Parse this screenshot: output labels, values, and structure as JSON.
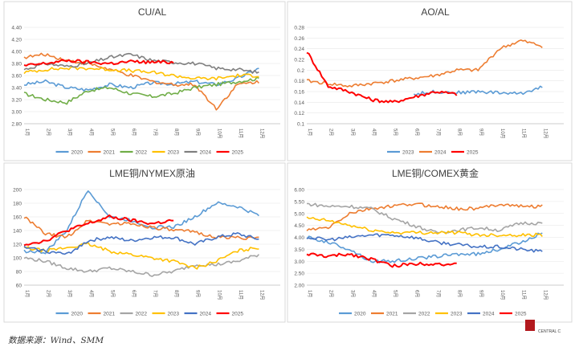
{
  "source_note": "数据来源：Wind、SMM",
  "logo": {
    "text": "CENTRAL C",
    "color": "#b3191e"
  },
  "months": [
    "1月",
    "2月",
    "3月",
    "4月",
    "5月",
    "6月",
    "7月",
    "8月",
    "9月",
    "10月",
    "11月",
    "12月"
  ],
  "colors": {
    "2020": "#5b9bd5",
    "2021": "#ed7d31",
    "2022": "#a5a5a5",
    "2022_cu": "#70ad47",
    "2023": "#ffc000",
    "2024": "#4472c4",
    "2024_cu": "#7f7f7f",
    "2025": "#ff0000"
  },
  "chart_data": [
    {
      "type": "line",
      "title": "CU/AL",
      "yticks": [
        "4.40",
        "4.20",
        "4.00",
        "3.80",
        "3.60",
        "3.40",
        "3.20",
        "3.00",
        "2.80"
      ],
      "ylim": [
        2.8,
        4.4
      ],
      "series": [
        {
          "name": "2020",
          "color": "#5b9bd5",
          "values": [
            3.45,
            3.5,
            3.4,
            3.36,
            3.45,
            3.4,
            3.48,
            3.46,
            3.5,
            3.45,
            3.55,
            3.72
          ]
        },
        {
          "name": "2021",
          "color": "#ed7d31",
          "values": [
            3.9,
            3.95,
            3.85,
            3.8,
            3.7,
            3.6,
            3.5,
            3.45,
            3.45,
            3.05,
            3.45,
            3.5
          ]
        },
        {
          "name": "2022",
          "color": "#70ad47",
          "values": [
            3.3,
            3.2,
            3.15,
            3.35,
            3.4,
            3.3,
            3.25,
            3.3,
            3.4,
            3.45,
            3.5,
            3.55
          ]
        },
        {
          "name": "2023",
          "color": "#ffc000",
          "values": [
            3.65,
            3.7,
            3.72,
            3.72,
            3.7,
            3.68,
            3.65,
            3.6,
            3.55,
            3.55,
            3.6,
            3.6
          ]
        },
        {
          "name": "2024",
          "color": "#7f7f7f",
          "values": [
            3.7,
            3.8,
            3.75,
            3.8,
            3.9,
            3.95,
            3.85,
            3.82,
            3.8,
            3.72,
            3.7,
            3.65
          ]
        },
        {
          "name": "2025",
          "color": "#ff0000",
          "values": [
            3.76,
            3.8,
            3.85,
            3.82,
            3.8,
            3.83,
            3.82,
            3.82,
            null,
            null,
            null,
            null
          ]
        }
      ]
    },
    {
      "type": "line",
      "title": "AO/AL",
      "yticks": [
        "0.28",
        "0.26",
        "0.24",
        "0.22",
        "0.2",
        "0.18",
        "0.16",
        "0.14",
        "0.12",
        "0.1"
      ],
      "ylim": [
        0.1,
        0.28
      ],
      "series": [
        {
          "name": "2023",
          "color": "#5b9bd5",
          "values": [
            null,
            null,
            null,
            null,
            null,
            0.155,
            0.16,
            0.158,
            0.16,
            0.158,
            0.156,
            0.17
          ]
        },
        {
          "name": "2024",
          "color": "#ed7d31",
          "values": [
            0.18,
            0.175,
            0.17,
            0.175,
            0.18,
            0.185,
            0.19,
            0.2,
            0.2,
            0.24,
            0.255,
            0.245
          ]
        },
        {
          "name": "2025",
          "color": "#ff0000",
          "values": [
            0.235,
            0.17,
            0.16,
            0.145,
            0.14,
            0.15,
            0.16,
            0.155,
            null,
            null,
            null,
            null
          ]
        }
      ]
    },
    {
      "type": "line",
      "title": "LME铜/NYMEX原油",
      "yticks": [
        "200",
        "180",
        "160",
        "140",
        "120",
        "100",
        "80",
        "60"
      ],
      "ylim": [
        60,
        200
      ],
      "series": [
        {
          "name": "2020",
          "color": "#5b9bd5",
          "values": [
            110,
            108,
            140,
            200,
            160,
            155,
            145,
            145,
            160,
            180,
            175,
            162
          ]
        },
        {
          "name": "2021",
          "color": "#ed7d31",
          "values": [
            160,
            135,
            130,
            155,
            150,
            150,
            145,
            140,
            138,
            130,
            130,
            128
          ]
        },
        {
          "name": "2022",
          "color": "#a5a5a5",
          "values": [
            100,
            95,
            85,
            80,
            85,
            80,
            75,
            80,
            90,
            90,
            95,
            105
          ]
        },
        {
          "name": "2023",
          "color": "#ffc000",
          "values": [
            115,
            110,
            115,
            120,
            110,
            105,
            100,
            95,
            85,
            95,
            110,
            115
          ]
        },
        {
          "name": "2024",
          "color": "#4472c4",
          "values": [
            115,
            110,
            105,
            125,
            130,
            125,
            130,
            130,
            120,
            130,
            135,
            127
          ]
        },
        {
          "name": "2025",
          "color": "#ff0000",
          "values": [
            120,
            125,
            140,
            150,
            160,
            155,
            150,
            155,
            null,
            null,
            null,
            null
          ]
        }
      ]
    },
    {
      "type": "line",
      "title": "LME铜/COMEX黄金",
      "yticks": [
        "6.00",
        "5.50",
        "5.00",
        "4.50",
        "4.00",
        "3.50",
        "3.00",
        "2.50",
        "2.00"
      ],
      "ylim": [
        2.0,
        6.0
      ],
      "series": [
        {
          "name": "2020",
          "color": "#5b9bd5",
          "values": [
            4.0,
            3.8,
            3.5,
            3.0,
            3.0,
            3.1,
            3.2,
            3.3,
            3.3,
            3.5,
            3.8,
            4.2
          ]
        },
        {
          "name": "2021",
          "color": "#ed7d31",
          "values": [
            4.3,
            4.4,
            5.0,
            5.2,
            5.3,
            5.4,
            5.3,
            5.2,
            5.2,
            5.4,
            5.3,
            5.3
          ]
        },
        {
          "name": "2022",
          "color": "#a5a5a5",
          "values": [
            5.4,
            5.3,
            5.3,
            5.2,
            4.8,
            4.5,
            4.2,
            4.3,
            4.4,
            4.3,
            4.6,
            4.6
          ]
        },
        {
          "name": "2023",
          "color": "#ffc000",
          "values": [
            4.8,
            4.7,
            4.5,
            4.3,
            4.2,
            4.2,
            4.2,
            4.2,
            4.1,
            4.1,
            4.1,
            4.1
          ]
        },
        {
          "name": "2024",
          "color": "#4472c4",
          "values": [
            4.0,
            3.9,
            4.0,
            4.1,
            4.1,
            4.0,
            3.8,
            3.7,
            3.6,
            3.6,
            3.5,
            3.4
          ]
        },
        {
          "name": "2025",
          "color": "#ff0000",
          "values": [
            3.3,
            3.2,
            3.3,
            3.1,
            2.8,
            2.9,
            2.9,
            2.85,
            null,
            null,
            null,
            null
          ]
        }
      ]
    }
  ]
}
